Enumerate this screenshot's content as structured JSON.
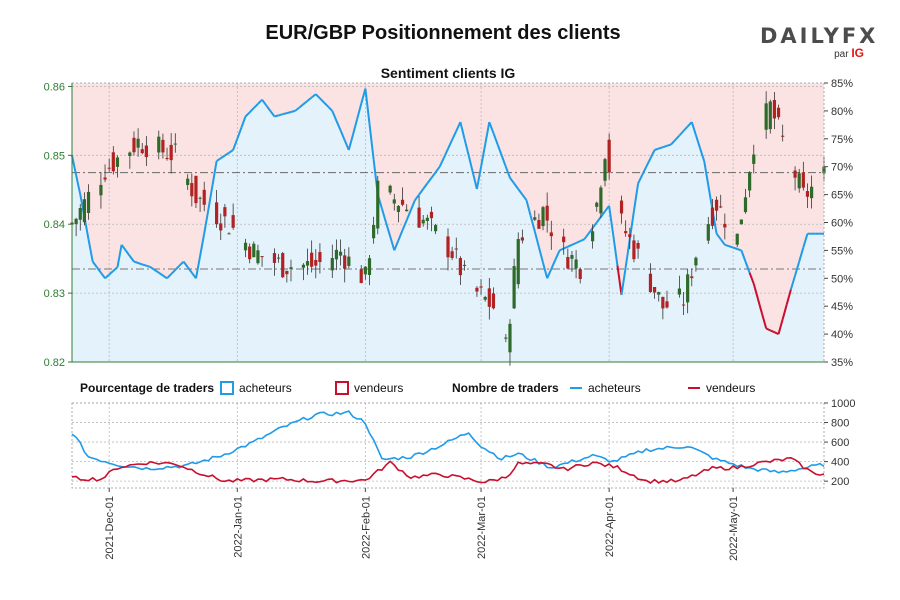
{
  "title": "EUR/GBP Positionnement des clients",
  "subtitle": "Sentiment clients IG",
  "logo": {
    "word_left": "DAILY",
    "word_right": "FX",
    "by": "par",
    "brand": "IG"
  },
  "colors": {
    "long": "#1f9be8",
    "short": "#c8102e",
    "long_fill": "#e4f2fb",
    "short_fill": "#fbe3e3",
    "up": "#2e6b2a",
    "down": "#b22222",
    "price_axis": "#2e7d32"
  },
  "legend": {
    "pct_label": "Pourcentage de traders",
    "pct_long": "acheteurs",
    "pct_short": "vendeurs",
    "count_label": "Nombre de traders",
    "count_long": "acheteurs",
    "count_short": "vendeurs"
  },
  "chart_data": [
    {
      "type": "candlestick+area",
      "title": "Sentiment clients IG",
      "price_axis": {
        "ticks": [
          0.82,
          0.83,
          0.84,
          0.85,
          0.86
        ],
        "range": [
          0.82,
          0.8605
        ]
      },
      "pct_axis": {
        "ticks": [
          "35%",
          "40%",
          "45%",
          "50%",
          "55%",
          "60%",
          "65%",
          "70%",
          "75%",
          "80%",
          "85%"
        ],
        "range": [
          35,
          85
        ]
      },
      "ref_lines": [
        0.8335,
        0.8475
      ],
      "x_ticks": [
        "2021-Dec-01",
        "2022-Jan-01",
        "2022-Feb-01",
        "2022-Mar-01",
        "2022-Apr-01",
        "2022-May-01"
      ],
      "x_range": [
        "2021-11-22",
        "2022-05-23"
      ],
      "price_anchors": [
        [
          "2021-11-22",
          0.84
        ],
        [
          "2021-11-30",
          0.848
        ],
        [
          "2021-12-08",
          0.852
        ],
        [
          "2021-12-17",
          0.85
        ],
        [
          "2021-12-22",
          0.844
        ],
        [
          "2021-12-30",
          0.84
        ],
        [
          "2022-01-05",
          0.836
        ],
        [
          "2022-01-12",
          0.834
        ],
        [
          "2022-01-20",
          0.834
        ],
        [
          "2022-01-26",
          0.836
        ],
        [
          "2022-02-01",
          0.832
        ],
        [
          "2022-02-04",
          0.845
        ],
        [
          "2022-02-10",
          0.843
        ],
        [
          "2022-02-16",
          0.84
        ],
        [
          "2022-02-22",
          0.836
        ],
        [
          "2022-02-26",
          0.831
        ],
        [
          "2022-03-04",
          0.828
        ],
        [
          "2022-03-07",
          0.822
        ],
        [
          "2022-03-10",
          0.838
        ],
        [
          "2022-03-16",
          0.842
        ],
        [
          "2022-03-21",
          0.836
        ],
        [
          "2022-03-25",
          0.834
        ],
        [
          "2022-03-29",
          0.843
        ],
        [
          "2022-03-31",
          0.851
        ],
        [
          "2022-04-04",
          0.84
        ],
        [
          "2022-04-10",
          0.833
        ],
        [
          "2022-04-14",
          0.828
        ],
        [
          "2022-04-19",
          0.829
        ],
        [
          "2022-04-23",
          0.838
        ],
        [
          "2022-04-27",
          0.843
        ],
        [
          "2022-05-02",
          0.838
        ],
        [
          "2022-05-06",
          0.852
        ],
        [
          "2022-05-10",
          0.857
        ],
        [
          "2022-05-13",
          0.852
        ],
        [
          "2022-05-18",
          0.844
        ],
        [
          "2022-05-23",
          0.847
        ]
      ],
      "long_pct_anchors": [
        [
          "2021-11-22",
          72
        ],
        [
          "2021-11-24",
          65
        ],
        [
          "2021-11-27",
          53
        ],
        [
          "2021-11-30",
          50
        ],
        [
          "2021-12-03",
          52
        ],
        [
          "2021-12-04",
          56
        ],
        [
          "2021-12-07",
          53
        ],
        [
          "2021-12-11",
          52
        ],
        [
          "2021-12-15",
          50
        ],
        [
          "2021-12-19",
          53
        ],
        [
          "2021-12-22",
          50
        ],
        [
          "2021-12-24",
          58
        ],
        [
          "2021-12-27",
          71
        ],
        [
          "2021-12-31",
          73
        ],
        [
          "2022-01-03",
          79
        ],
        [
          "2022-01-07",
          82
        ],
        [
          "2022-01-10",
          79
        ],
        [
          "2022-01-15",
          80
        ],
        [
          "2022-01-20",
          83
        ],
        [
          "2022-01-24",
          80
        ],
        [
          "2022-01-28",
          73
        ],
        [
          "2022-02-01",
          84
        ],
        [
          "2022-02-04",
          65
        ],
        [
          "2022-02-08",
          55
        ],
        [
          "2022-02-13",
          64
        ],
        [
          "2022-02-19",
          70
        ],
        [
          "2022-02-24",
          78
        ],
        [
          "2022-02-28",
          66
        ],
        [
          "2022-03-03",
          78
        ],
        [
          "2022-03-08",
          68
        ],
        [
          "2022-03-12",
          64
        ],
        [
          "2022-03-17",
          50
        ],
        [
          "2022-03-20",
          55
        ],
        [
          "2022-03-26",
          57
        ],
        [
          "2022-04-01",
          63
        ],
        [
          "2022-04-04",
          47
        ],
        [
          "2022-04-08",
          67
        ],
        [
          "2022-04-12",
          73
        ],
        [
          "2022-04-16",
          74
        ],
        [
          "2022-04-21",
          78
        ],
        [
          "2022-04-24",
          71
        ],
        [
          "2022-04-27",
          58
        ],
        [
          "2022-04-29",
          56
        ],
        [
          "2022-05-03",
          55
        ],
        [
          "2022-05-06",
          49
        ],
        [
          "2022-05-09",
          41
        ],
        [
          "2022-05-12",
          40
        ],
        [
          "2022-05-15",
          48
        ],
        [
          "2022-05-19",
          58
        ],
        [
          "2022-05-23",
          58
        ]
      ],
      "long_count_anchors": [
        [
          "2021-11-22",
          700
        ],
        [
          "2021-11-26",
          450
        ],
        [
          "2021-12-03",
          370
        ],
        [
          "2021-12-10",
          330
        ],
        [
          "2021-12-20",
          360
        ],
        [
          "2021-12-28",
          460
        ],
        [
          "2022-01-05",
          600
        ],
        [
          "2022-01-12",
          750
        ],
        [
          "2022-01-20",
          880
        ],
        [
          "2022-01-28",
          900
        ],
        [
          "2022-02-01",
          800
        ],
        [
          "2022-02-05",
          420
        ],
        [
          "2022-02-12",
          450
        ],
        [
          "2022-02-19",
          560
        ],
        [
          "2022-02-26",
          700
        ],
        [
          "2022-03-01",
          560
        ],
        [
          "2022-03-06",
          430
        ],
        [
          "2022-03-10",
          480
        ],
        [
          "2022-03-18",
          340
        ],
        [
          "2022-03-28",
          460
        ],
        [
          "2022-04-02",
          400
        ],
        [
          "2022-04-10",
          520
        ],
        [
          "2022-04-20",
          560
        ],
        [
          "2022-04-27",
          420
        ],
        [
          "2022-05-05",
          330
        ],
        [
          "2022-05-12",
          290
        ],
        [
          "2022-05-23",
          370
        ]
      ],
      "short_count_anchors": [
        [
          "2021-11-22",
          230
        ],
        [
          "2021-11-29",
          220
        ],
        [
          "2021-12-03",
          340
        ],
        [
          "2021-12-10",
          390
        ],
        [
          "2021-12-17",
          380
        ],
        [
          "2021-12-22",
          300
        ],
        [
          "2021-12-29",
          200
        ],
        [
          "2022-01-05",
          210
        ],
        [
          "2022-01-12",
          220
        ],
        [
          "2022-01-20",
          200
        ],
        [
          "2022-02-01",
          210
        ],
        [
          "2022-02-07",
          390
        ],
        [
          "2022-02-12",
          240
        ],
        [
          "2022-02-19",
          270
        ],
        [
          "2022-02-26",
          220
        ],
        [
          "2022-03-02",
          190
        ],
        [
          "2022-03-07",
          240
        ],
        [
          "2022-03-10",
          380
        ],
        [
          "2022-03-17",
          370
        ],
        [
          "2022-03-21",
          320
        ],
        [
          "2022-03-28",
          390
        ],
        [
          "2022-04-03",
          340
        ],
        [
          "2022-04-10",
          200
        ],
        [
          "2022-04-18",
          200
        ],
        [
          "2022-04-26",
          330
        ],
        [
          "2022-05-02",
          340
        ],
        [
          "2022-05-08",
          390
        ],
        [
          "2022-05-15",
          430
        ],
        [
          "2022-05-20",
          290
        ],
        [
          "2022-05-23",
          270
        ]
      ]
    },
    {
      "type": "line",
      "title": "",
      "y_ticks": [
        200,
        400,
        600,
        800,
        1000
      ],
      "y_range": [
        130,
        1000
      ]
    }
  ]
}
